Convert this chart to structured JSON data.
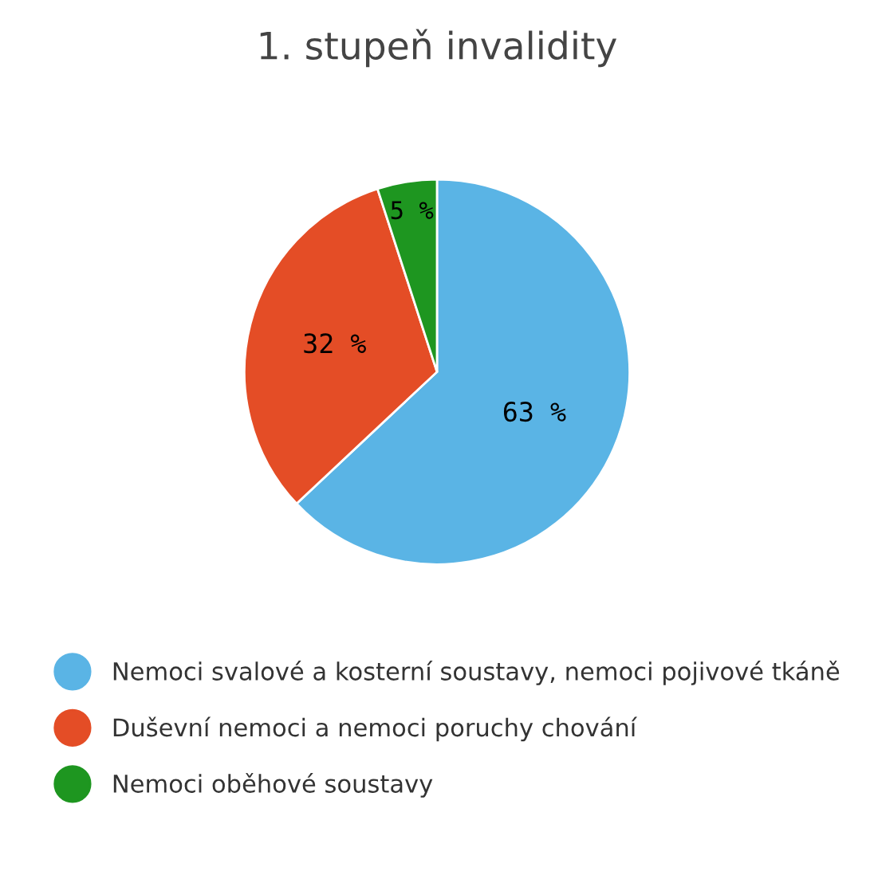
{
  "chart_data": {
    "type": "pie",
    "title": "1. stupeň invalidity",
    "categories": [
      "Nemoci svalové a kosterní soustavy, nemoci pojivové tkáně",
      "Duševní nemoci a nemoci poruchy chování",
      "Nemoci oběhové soustavy"
    ],
    "values": [
      63,
      32,
      5
    ],
    "value_labels": [
      "63 %",
      "32 %",
      "5 %"
    ],
    "colors": [
      "#5ab4e5",
      "#e44d26",
      "#1e9620"
    ],
    "legend": "bottom"
  }
}
